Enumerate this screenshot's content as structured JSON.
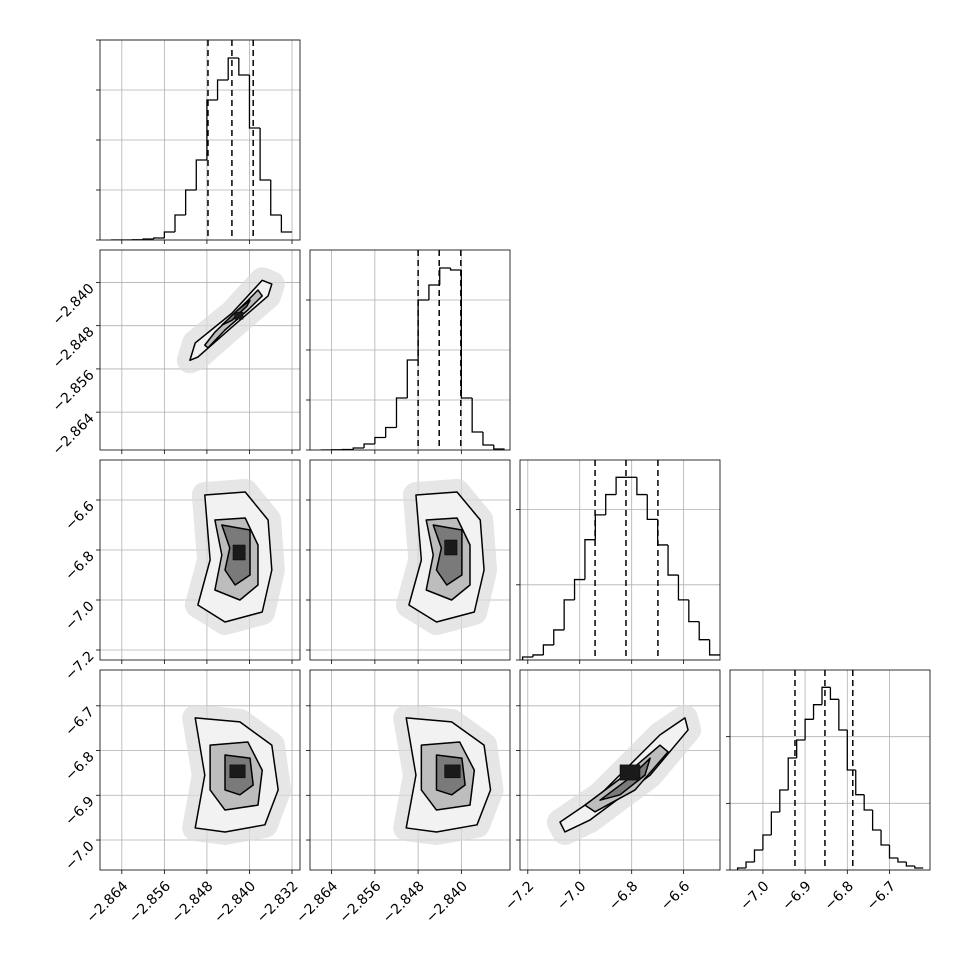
{
  "chart_data": [
    {
      "type": "histogram",
      "color": "#000000",
      "grid": true,
      "xlim": [
        -2.8681,
        -2.8305
      ],
      "xticks": [
        -2.864,
        -2.856,
        -2.848,
        -2.84,
        -2.832
      ],
      "ylim": [
        0,
        4000
      ],
      "yticks": [
        0,
        1000,
        2000,
        3000,
        4000
      ],
      "bins": [
        -2.866,
        -2.864,
        -2.862,
        -2.86,
        -2.858,
        -2.856,
        -2.854,
        -2.852,
        -2.85,
        -2.848,
        -2.846,
        -2.844,
        -2.842,
        -2.84,
        -2.838,
        -2.836,
        -2.834,
        -2.832
      ],
      "values": [
        0,
        0,
        5,
        20,
        40,
        160,
        500,
        1000,
        1600,
        2800,
        3200,
        3640,
        3300,
        2240,
        1200,
        500,
        160
      ],
      "quantiles": [
        -2.8478,
        -2.8433,
        -2.8393
      ]
    },
    {
      "type": "contour",
      "grid": true,
      "fill_colors": [
        "#f2f2f2",
        "#bdbdbd",
        "#7a7a7a",
        "#1a1a1a"
      ],
      "xlim": [
        -2.8681,
        -2.8305
      ],
      "xticks": [
        -2.864,
        -2.856,
        -2.848,
        -2.84,
        -2.832
      ],
      "ylim": [
        -2.871,
        -2.834
      ],
      "yticks": [
        {
          "value": -2.84,
          "label": "−2.840"
        },
        {
          "value": -2.848,
          "label": "−2.848"
        },
        {
          "value": -2.856,
          "label": "−2.856"
        },
        {
          "value": -2.864,
          "label": "−2.864"
        }
      ],
      "contours": [
        {
          "x": [
            -2.8512,
            -2.8502,
            -2.8433,
            -2.8376,
            -2.8358,
            -2.8365,
            -2.8431,
            -2.8497
          ],
          "y": [
            -2.8544,
            -2.8512,
            -2.8457,
            -2.8396,
            -2.8403,
            -2.8425,
            -2.8481,
            -2.8538
          ]
        },
        {
          "x": [
            -2.8484,
            -2.8465,
            -2.8408,
            -2.8384,
            -2.8376,
            -2.8403,
            -2.8446,
            -2.8478
          ],
          "y": [
            -2.8516,
            -2.8492,
            -2.8438,
            -2.8414,
            -2.8425,
            -2.8451,
            -2.8488,
            -2.8521
          ]
        },
        {
          "x": [
            -2.8452,
            -2.8422,
            -2.8399,
            -2.8405,
            -2.8433
          ],
          "y": [
            -2.8479,
            -2.8451,
            -2.8433,
            -2.8444,
            -2.847
          ]
        },
        {
          "x": [
            -2.8428,
            -2.8412,
            -2.8412,
            -2.8428
          ],
          "y": [
            -2.8455,
            -2.8455,
            -2.8468,
            -2.8468
          ]
        }
      ]
    },
    {
      "type": "histogram",
      "color": "#000000",
      "grid": true,
      "xlim": [
        -2.868,
        -2.831
      ],
      "xticks": [
        -2.864,
        -2.856,
        -2.848,
        -2.84
      ],
      "ylim": [
        0,
        4000
      ],
      "yticks": [
        0,
        1000,
        2000,
        3000
      ],
      "bins": [
        -2.866,
        -2.864,
        -2.862,
        -2.86,
        -2.858,
        -2.856,
        -2.854,
        -2.852,
        -2.85,
        -2.848,
        -2.846,
        -2.844,
        -2.842,
        -2.84,
        -2.838,
        -2.836,
        -2.834,
        -2.832
      ],
      "values": [
        0,
        5,
        10,
        40,
        120,
        250,
        450,
        1040,
        1800,
        3000,
        3300,
        3640,
        3600,
        1040,
        360,
        100,
        20
      ],
      "quantiles": [
        -2.848,
        -2.8441,
        -2.8401
      ]
    },
    {
      "type": "contour",
      "grid": true,
      "fill_colors": [
        "#f2f2f2",
        "#bdbdbd",
        "#7a7a7a",
        "#1a1a1a"
      ],
      "xlim": [
        -2.8681,
        -2.8305
      ],
      "xticks": [
        -2.864,
        -2.856,
        -2.848,
        -2.84,
        -2.832
      ],
      "ylim": [
        -7.24,
        -6.44
      ],
      "yticks": [
        {
          "value": -6.6,
          "label": "−6.6"
        },
        {
          "value": -6.8,
          "label": "−6.8"
        },
        {
          "value": -7.0,
          "label": "−7.0"
        },
        {
          "value": -7.2,
          "label": "−7.2"
        }
      ],
      "contours": [
        {
          "x": [
            -2.8484,
            -2.8408,
            -2.8365,
            -2.8358,
            -2.8376,
            -2.8446,
            -2.8497,
            -2.8474
          ],
          "y": [
            -6.58,
            -6.568,
            -6.68,
            -6.88,
            -7.048,
            -7.088,
            -7.02,
            -6.84
          ]
        },
        {
          "x": [
            -2.8465,
            -2.8408,
            -2.8384,
            -2.8384,
            -2.8418,
            -2.8465,
            -2.8452
          ],
          "y": [
            -6.68,
            -6.672,
            -6.78,
            -6.94,
            -7.0,
            -6.96,
            -6.82
          ]
        },
        {
          "x": [
            -2.8452,
            -2.8399,
            -2.8399,
            -2.8427,
            -2.8446,
            -2.8437
          ],
          "y": [
            -6.7,
            -6.72,
            -6.9,
            -6.94,
            -6.88,
            -6.792
          ]
        },
        {
          "x": [
            -2.8431,
            -2.8408,
            -2.8408,
            -2.8431
          ],
          "y": [
            -6.78,
            -6.78,
            -6.84,
            -6.84
          ]
        }
      ]
    },
    {
      "type": "contour",
      "grid": true,
      "fill_colors": [
        "#f2f2f2",
        "#bdbdbd",
        "#7a7a7a",
        "#1a1a1a"
      ],
      "xlim": [
        -2.868,
        -2.831
      ],
      "xticks": [
        -2.864,
        -2.856,
        -2.848,
        -2.84
      ],
      "ylim": [
        -7.24,
        -6.44
      ],
      "yticks": [
        -6.6,
        -6.8,
        -7.0,
        -7.2
      ],
      "contours": [
        {
          "x": [
            -2.8484,
            -2.8408,
            -2.8365,
            -2.8358,
            -2.8376,
            -2.8446,
            -2.8497,
            -2.8474
          ],
          "y": [
            -6.58,
            -6.568,
            -6.68,
            -6.88,
            -7.048,
            -7.088,
            -7.02,
            -6.84
          ]
        },
        {
          "x": [
            -2.8465,
            -2.8408,
            -2.8384,
            -2.8384,
            -2.8418,
            -2.8465,
            -2.8452
          ],
          "y": [
            -6.68,
            -6.672,
            -6.78,
            -6.94,
            -7.0,
            -6.96,
            -6.82
          ]
        },
        {
          "x": [
            -2.8452,
            -2.8399,
            -2.8399,
            -2.8427,
            -2.8446,
            -2.8437
          ],
          "y": [
            -6.7,
            -6.72,
            -6.9,
            -6.94,
            -6.88,
            -6.792
          ]
        },
        {
          "x": [
            -2.8431,
            -2.8408,
            -2.8408,
            -2.8431
          ],
          "y": [
            -6.76,
            -6.76,
            -6.82,
            -6.82
          ]
        }
      ]
    },
    {
      "type": "histogram",
      "color": "#000000",
      "grid": true,
      "xlim": [
        -7.23,
        -6.46
      ],
      "xticks": [
        -7.2,
        -7.0,
        -6.8,
        -6.6
      ],
      "ylim": [
        0,
        2660
      ],
      "yticks": [
        0,
        1000,
        2000
      ],
      "bins": [
        -7.22,
        -7.18,
        -7.14,
        -7.1,
        -7.06,
        -7.02,
        -6.98,
        -6.94,
        -6.9,
        -6.86,
        -6.82,
        -6.78,
        -6.74,
        -6.7,
        -6.66,
        -6.62,
        -6.58,
        -6.54,
        -6.5,
        -6.46
      ],
      "values": [
        40,
        67,
        200,
        400,
        800,
        1070,
        1600,
        1930,
        2200,
        2430,
        2430,
        2200,
        1870,
        1530,
        1130,
        800,
        510,
        270,
        67
      ],
      "quantiles": [
        -6.941,
        -6.822,
        -6.699
      ]
    },
    {
      "type": "contour",
      "grid": true,
      "fill_colors": [
        "#f2f2f2",
        "#bdbdbd",
        "#7a7a7a",
        "#1a1a1a"
      ],
      "xlim": [
        -2.8681,
        -2.8305
      ],
      "xticks": [
        {
          "value": -2.864,
          "label": "−2.864"
        },
        {
          "value": -2.856,
          "label": "−2.856"
        },
        {
          "value": -2.848,
          "label": "−2.848"
        },
        {
          "value": -2.84,
          "label": "−2.840"
        },
        {
          "value": -2.832,
          "label": "−2.832"
        }
      ],
      "ylim": [
        -7.067,
        -6.62
      ],
      "yticks": [
        {
          "value": -6.7,
          "label": "−6.7"
        },
        {
          "value": -6.8,
          "label": "−6.8"
        },
        {
          "value": -6.9,
          "label": "−6.9"
        },
        {
          "value": -7.0,
          "label": "−7.0"
        }
      ],
      "contours": [
        {
          "x": [
            -2.8502,
            -2.8418,
            -2.8358,
            -2.8346,
            -2.8371,
            -2.8446,
            -2.8502,
            -2.8484
          ],
          "y": [
            -6.727,
            -6.736,
            -6.788,
            -6.888,
            -6.966,
            -6.982,
            -6.973,
            -6.855
          ]
        },
        {
          "x": [
            -2.8474,
            -2.8403,
            -2.8376,
            -2.8384,
            -2.8446,
            -2.8474
          ],
          "y": [
            -6.788,
            -6.781,
            -6.844,
            -6.922,
            -6.933,
            -6.888
          ]
        },
        {
          "x": [
            -2.8446,
            -2.8399,
            -2.8393,
            -2.8418,
            -2.8446
          ],
          "y": [
            -6.81,
            -6.817,
            -6.877,
            -6.899,
            -6.888
          ]
        },
        {
          "x": [
            -2.8437,
            -2.8408,
            -2.8408,
            -2.8437
          ],
          "y": [
            -6.832,
            -6.832,
            -6.861,
            -6.861
          ]
        }
      ]
    },
    {
      "type": "contour",
      "grid": true,
      "fill_colors": [
        "#f2f2f2",
        "#bdbdbd",
        "#7a7a7a",
        "#1a1a1a"
      ],
      "xlim": [
        -2.868,
        -2.831
      ],
      "xticks": [
        {
          "value": -2.864,
          "label": "−2.864"
        },
        {
          "value": -2.856,
          "label": "−2.856"
        },
        {
          "value": -2.848,
          "label": "−2.848"
        },
        {
          "value": -2.84,
          "label": "−2.840"
        }
      ],
      "ylim": [
        -7.067,
        -6.62
      ],
      "yticks": [
        -6.7,
        -6.8,
        -6.9,
        -7.0
      ],
      "contours": [
        {
          "x": [
            -2.8502,
            -2.8418,
            -2.8358,
            -2.8346,
            -2.8371,
            -2.8446,
            -2.8502,
            -2.8484
          ],
          "y": [
            -6.727,
            -6.736,
            -6.788,
            -6.888,
            -6.966,
            -6.982,
            -6.973,
            -6.855
          ]
        },
        {
          "x": [
            -2.8474,
            -2.8403,
            -2.8376,
            -2.8384,
            -2.8446,
            -2.8474
          ],
          "y": [
            -6.788,
            -6.781,
            -6.844,
            -6.922,
            -6.933,
            -6.888
          ]
        },
        {
          "x": [
            -2.8446,
            -2.8399,
            -2.8393,
            -2.8418,
            -2.8446
          ],
          "y": [
            -6.81,
            -6.817,
            -6.877,
            -6.899,
            -6.888
          ]
        },
        {
          "x": [
            -2.8431,
            -2.8402,
            -2.8402,
            -2.8431
          ],
          "y": [
            -6.832,
            -6.832,
            -6.861,
            -6.861
          ]
        }
      ]
    },
    {
      "type": "contour",
      "grid": true,
      "fill_colors": [
        "#f2f2f2",
        "#bdbdbd",
        "#7a7a7a",
        "#1a1a1a"
      ],
      "xlim": [
        -7.23,
        -6.46
      ],
      "xticks": [
        {
          "value": -7.2,
          "label": "−7.2"
        },
        {
          "value": -7.0,
          "label": "−7.0"
        },
        {
          "value": -6.8,
          "label": "−6.8"
        },
        {
          "value": -6.6,
          "label": "−6.6"
        }
      ],
      "ylim": [
        -7.067,
        -6.62
      ],
      "yticks": [
        -6.7,
        -6.8,
        -6.9,
        -7.0
      ],
      "contours": [
        {
          "x": [
            -7.076,
            -6.922,
            -6.691,
            -6.595,
            -6.583,
            -6.729,
            -6.96,
            -7.057
          ],
          "y": [
            -6.96,
            -6.899,
            -6.765,
            -6.727,
            -6.754,
            -6.855,
            -6.955,
            -6.982
          ]
        },
        {
          "x": [
            -6.98,
            -6.826,
            -6.691,
            -6.66,
            -6.787,
            -6.941
          ],
          "y": [
            -6.922,
            -6.855,
            -6.788,
            -6.803,
            -6.888,
            -6.937
          ]
        },
        {
          "x": [
            -6.922,
            -6.807,
            -6.729,
            -6.749,
            -6.845
          ],
          "y": [
            -6.911,
            -6.861,
            -6.817,
            -6.855,
            -6.899
          ]
        },
        {
          "x": [
            -6.845,
            -6.768,
            -6.768,
            -6.845
          ],
          "y": [
            -6.832,
            -6.832,
            -6.866,
            -6.866
          ]
        }
      ]
    },
    {
      "type": "histogram",
      "color": "#000000",
      "grid": true,
      "xlim": [
        -7.078,
        -6.604
      ],
      "xticks": [
        {
          "value": -7.0,
          "label": "−7.0"
        },
        {
          "value": -6.9,
          "label": "−6.9"
        },
        {
          "value": -6.8,
          "label": "−6.8"
        },
        {
          "value": -6.7,
          "label": "−6.7"
        }
      ],
      "ylim": [
        0,
        3000
      ],
      "yticks": [
        0,
        1000,
        2000
      ],
      "bins": [
        -7.06,
        -7.04,
        -7.02,
        -7.0,
        -6.98,
        -6.96,
        -6.94,
        -6.92,
        -6.9,
        -6.88,
        -6.86,
        -6.84,
        -6.82,
        -6.8,
        -6.78,
        -6.76,
        -6.74,
        -6.72,
        -6.7,
        -6.68,
        -6.66,
        -6.64,
        -6.62
      ],
      "values": [
        30,
        120,
        300,
        525,
        870,
        1200,
        1680,
        1950,
        2260,
        2480,
        2740,
        2560,
        2100,
        1500,
        1130,
        900,
        600,
        375,
        180,
        120,
        60,
        30
      ],
      "quantiles": [
        -6.924,
        -6.853,
        -6.787
      ]
    }
  ]
}
